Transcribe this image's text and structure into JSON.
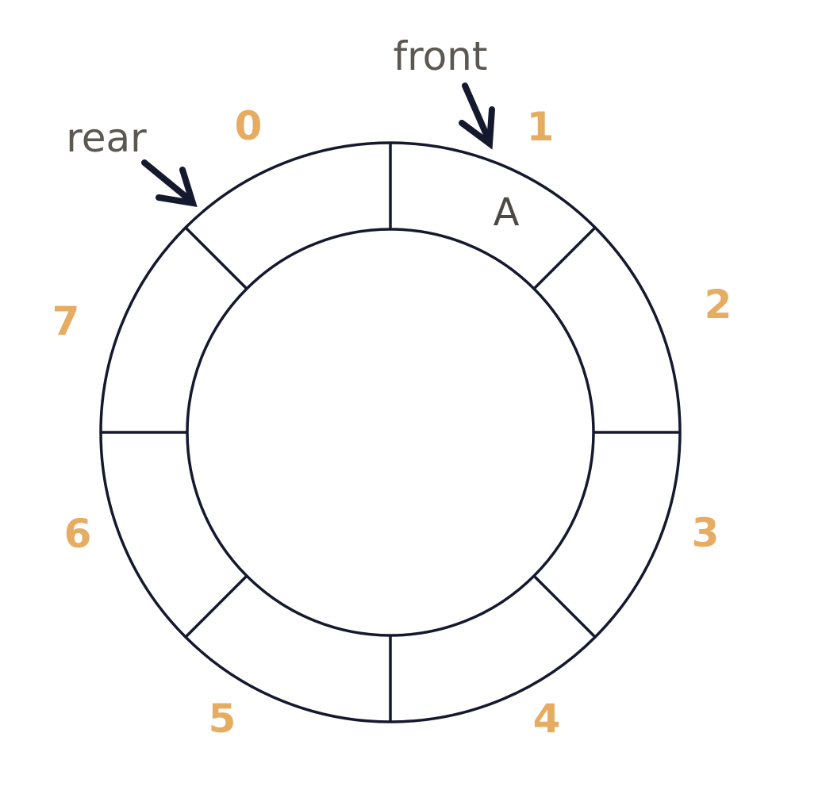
{
  "colors": {
    "line": "#14192e",
    "index": "#e6ac62",
    "label": "#5c5750",
    "value": "#4d4944"
  },
  "queue": {
    "slots": [
      {
        "index": "0",
        "value": ""
      },
      {
        "index": "1",
        "value": "A"
      },
      {
        "index": "2",
        "value": ""
      },
      {
        "index": "3",
        "value": ""
      },
      {
        "index": "4",
        "value": ""
      },
      {
        "index": "5",
        "value": ""
      },
      {
        "index": "6",
        "value": ""
      },
      {
        "index": "7",
        "value": ""
      }
    ]
  },
  "pointers": {
    "front": {
      "label": "front",
      "slot": 1
    },
    "rear": {
      "label": "rear",
      "slot": 0
    }
  }
}
